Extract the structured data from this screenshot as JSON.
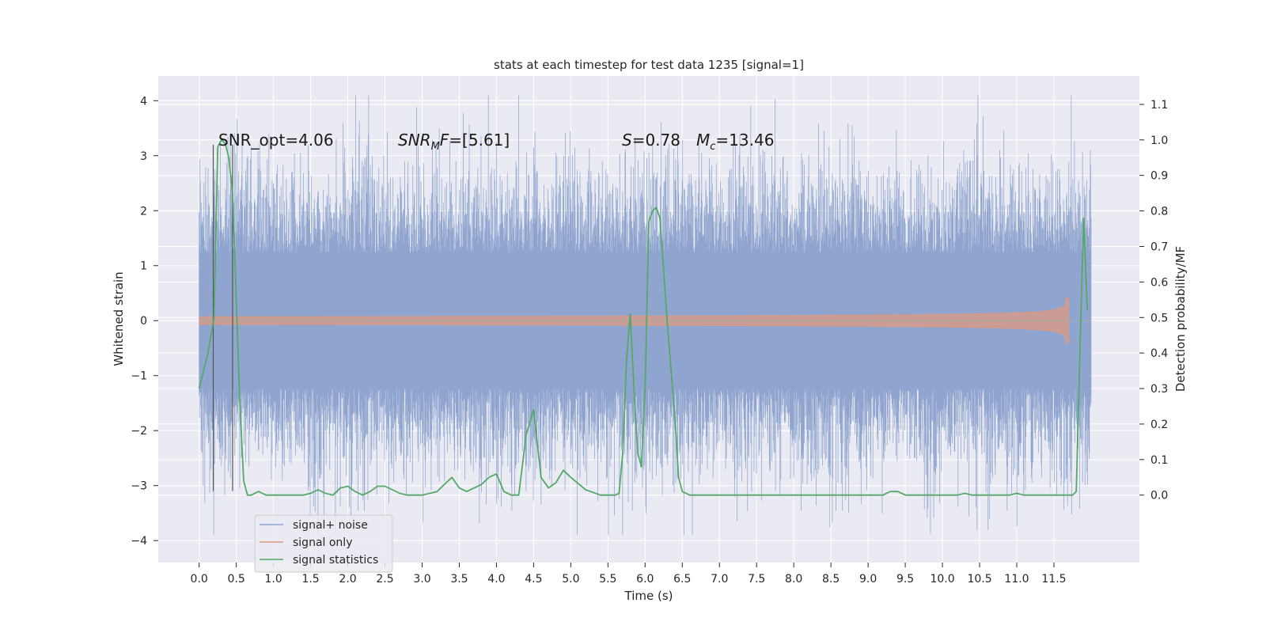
{
  "chart_data": {
    "type": "line",
    "title": "stats at each timestep for test data 1235 [signal=1]",
    "xlabel": "Time (s)",
    "ylabel": "Whitened strain",
    "y2label": "Detection probability/MF",
    "xlim": [
      -0.55,
      12.65
    ],
    "ylim": [
      -4.4,
      4.45
    ],
    "y2lim": [
      -0.19,
      1.18
    ],
    "xticks": [
      "0.0",
      "0.5",
      "1.0",
      "1.5",
      "2.0",
      "2.5",
      "3.0",
      "3.5",
      "4.0",
      "4.5",
      "5.0",
      "5.5",
      "6.0",
      "6.5",
      "7.0",
      "7.5",
      "8.0",
      "8.5",
      "9.0",
      "9.5",
      "10.0",
      "10.5",
      "11.0",
      "11.5"
    ],
    "yticks": [
      "4",
      "3",
      "2",
      "1",
      "0",
      "−1",
      "−2",
      "−3",
      "−4"
    ],
    "y2ticks": [
      "1.1",
      "1.0",
      "0.9",
      "0.8",
      "0.7",
      "0.6",
      "0.5",
      "0.4",
      "0.3",
      "0.2",
      "0.1",
      "0.0"
    ],
    "grid": true,
    "legend_position": "lower-left",
    "annotations": {
      "snr_opt": "SNR_opt=4.06",
      "snr_mf_main": "SNR",
      "snr_mf_sub": "M",
      "snr_mf_rest": "F=[5.61]",
      "s_main": "S",
      "s_rest": "=0.78",
      "mc_main": "M",
      "mc_sub": "c",
      "mc_rest": "=13.46"
    },
    "series": [
      {
        "name": "signal+ noise",
        "color": "#8fa5cf",
        "amplitude_range": [
          -3.9,
          4.1
        ],
        "x_range": [
          0.0,
          12.0
        ]
      },
      {
        "name": "signal only",
        "color": "#dd9a80",
        "x_range": [
          0.0,
          11.7
        ],
        "peak_amplitude": 0.6
      },
      {
        "name": "signal statistics",
        "color": "#55a868",
        "x": [
          0.0,
          0.12,
          0.2,
          0.25,
          0.3,
          0.35,
          0.4,
          0.45,
          0.5,
          0.55,
          0.6,
          0.65,
          0.7,
          0.8,
          0.9,
          1.0,
          1.2,
          1.4,
          1.5,
          1.6,
          1.7,
          1.8,
          1.9,
          2.0,
          2.1,
          2.2,
          2.3,
          2.4,
          2.5,
          2.6,
          2.7,
          2.8,
          3.0,
          3.2,
          3.3,
          3.4,
          3.5,
          3.6,
          3.7,
          3.8,
          3.9,
          4.0,
          4.1,
          4.2,
          4.3,
          4.4,
          4.5,
          4.6,
          4.7,
          4.8,
          4.9,
          5.0,
          5.2,
          5.4,
          5.5,
          5.6,
          5.65,
          5.7,
          5.75,
          5.8,
          5.85,
          5.9,
          5.95,
          6.0,
          6.05,
          6.1,
          6.15,
          6.2,
          6.3,
          6.4,
          6.45,
          6.5,
          6.6,
          6.8,
          7.0,
          7.5,
          8.0,
          8.5,
          9.0,
          9.2,
          9.3,
          9.4,
          9.5,
          9.8,
          10.0,
          10.2,
          10.3,
          10.4,
          10.6,
          10.9,
          11.0,
          11.1,
          11.3,
          11.5,
          11.7,
          11.75,
          11.8,
          11.85,
          11.9,
          11.95
        ],
        "y": [
          0.3,
          0.4,
          0.5,
          0.98,
          1.0,
          0.99,
          0.95,
          0.85,
          0.55,
          0.25,
          0.04,
          0.0,
          0.0,
          0.01,
          0.0,
          0.0,
          0.0,
          0.0,
          0.005,
          0.015,
          0.005,
          0.0,
          0.02,
          0.025,
          0.01,
          0.0,
          0.01,
          0.025,
          0.025,
          0.015,
          0.005,
          0.0,
          0.0,
          0.01,
          0.03,
          0.05,
          0.02,
          0.01,
          0.02,
          0.03,
          0.05,
          0.06,
          0.01,
          0.0,
          0.0,
          0.17,
          0.24,
          0.05,
          0.02,
          0.035,
          0.07,
          0.05,
          0.015,
          0.0,
          0.0,
          0.0,
          0.005,
          0.12,
          0.38,
          0.51,
          0.3,
          0.12,
          0.08,
          0.3,
          0.77,
          0.8,
          0.81,
          0.78,
          0.48,
          0.22,
          0.05,
          0.01,
          0.0,
          0.0,
          0.0,
          0.0,
          0.0,
          0.0,
          0.0,
          0.0,
          0.01,
          0.01,
          0.0,
          0.0,
          0.0,
          0.0,
          0.005,
          0.0,
          0.0,
          0.0,
          0.005,
          0.0,
          0.0,
          0.0,
          0.0,
          0.0,
          0.01,
          0.4,
          0.78,
          0.52
        ]
      }
    ],
    "vlines": [
      {
        "x": 0.19,
        "y_top": 3.2,
        "y_bottom": -3.1
      },
      {
        "x": 0.45,
        "y_top": 3.2,
        "y_bottom": -3.1
      }
    ]
  }
}
